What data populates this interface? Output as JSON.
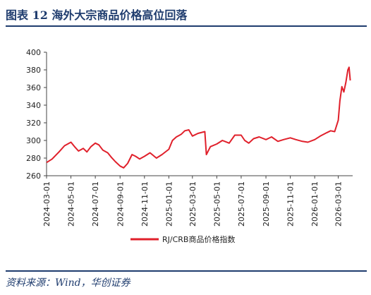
{
  "header": {
    "title": "图表  12    海外大宗商品价格高位回落"
  },
  "footer": {
    "source": "资料来源：Wind，华创证券"
  },
  "colors": {
    "accent": "#1f3c6e",
    "series": "#e0202b"
  },
  "chart_data": {
    "type": "line",
    "title": "",
    "xlabel": "",
    "ylabel": "",
    "ylim": [
      260,
      400
    ],
    "yticks": [
      260,
      280,
      300,
      320,
      340,
      360,
      380,
      400
    ],
    "xticks": [
      "2024-03-01",
      "2024-05-01",
      "2024-07-01",
      "2024-09-01",
      "2024-11-01",
      "2025-01-01",
      "2025-03-01",
      "2025-05-01",
      "2025-07-01",
      "2025-09-01",
      "2025-11-01",
      "2026-01-01",
      "2026-03-01"
    ],
    "grid": false,
    "legend_position": "bottom",
    "series": [
      {
        "name": "RJ/CRB商品价格指数",
        "color": "#e0202b",
        "points": [
          [
            "2024-03-01",
            275
          ],
          [
            "2024-03-15",
            279
          ],
          [
            "2024-04-01",
            287
          ],
          [
            "2024-04-15",
            294
          ],
          [
            "2024-05-01",
            298
          ],
          [
            "2024-05-10",
            293
          ],
          [
            "2024-05-20",
            288
          ],
          [
            "2024-06-01",
            291
          ],
          [
            "2024-06-10",
            287
          ],
          [
            "2024-06-20",
            293
          ],
          [
            "2024-07-01",
            297
          ],
          [
            "2024-07-10",
            295
          ],
          [
            "2024-07-20",
            289
          ],
          [
            "2024-08-01",
            286
          ],
          [
            "2024-08-10",
            281
          ],
          [
            "2024-08-20",
            276
          ],
          [
            "2024-09-01",
            271
          ],
          [
            "2024-09-10",
            269
          ],
          [
            "2024-09-20",
            274
          ],
          [
            "2024-10-01",
            284
          ],
          [
            "2024-10-10",
            282
          ],
          [
            "2024-10-20",
            279
          ],
          [
            "2024-11-01",
            282
          ],
          [
            "2024-11-15",
            286
          ],
          [
            "2024-12-01",
            280
          ],
          [
            "2024-12-15",
            284
          ],
          [
            "2025-01-01",
            290
          ],
          [
            "2025-01-10",
            300
          ],
          [
            "2025-01-20",
            304
          ],
          [
            "2025-02-01",
            307
          ],
          [
            "2025-02-10",
            311
          ],
          [
            "2025-02-20",
            312
          ],
          [
            "2025-03-01",
            305
          ],
          [
            "2025-03-15",
            308
          ],
          [
            "2025-04-01",
            310
          ],
          [
            "2025-04-05",
            284
          ],
          [
            "2025-04-15",
            293
          ],
          [
            "2025-05-01",
            296
          ],
          [
            "2025-05-15",
            300
          ],
          [
            "2025-06-01",
            297
          ],
          [
            "2025-06-15",
            306
          ],
          [
            "2025-07-01",
            306
          ],
          [
            "2025-07-10",
            300
          ],
          [
            "2025-07-20",
            297
          ],
          [
            "2025-08-01",
            302
          ],
          [
            "2025-08-15",
            304
          ],
          [
            "2025-09-01",
            301
          ],
          [
            "2025-09-15",
            304
          ],
          [
            "2025-10-01",
            299
          ],
          [
            "2025-10-15",
            301
          ],
          [
            "2025-11-01",
            303
          ],
          [
            "2025-11-15",
            301
          ],
          [
            "2025-12-01",
            299
          ],
          [
            "2025-12-15",
            298
          ],
          [
            "2026-01-01",
            301
          ],
          [
            "2026-01-15",
            305
          ],
          [
            "2026-02-01",
            309
          ],
          [
            "2026-02-10",
            311
          ],
          [
            "2026-02-20",
            310
          ],
          [
            "2026-03-01",
            323
          ],
          [
            "2026-03-05",
            345
          ],
          [
            "2026-03-10",
            361
          ],
          [
            "2026-03-15",
            355
          ],
          [
            "2026-03-20",
            366
          ],
          [
            "2026-03-25",
            380
          ],
          [
            "2026-03-28",
            383
          ],
          [
            "2026-03-31",
            368
          ]
        ]
      }
    ]
  }
}
